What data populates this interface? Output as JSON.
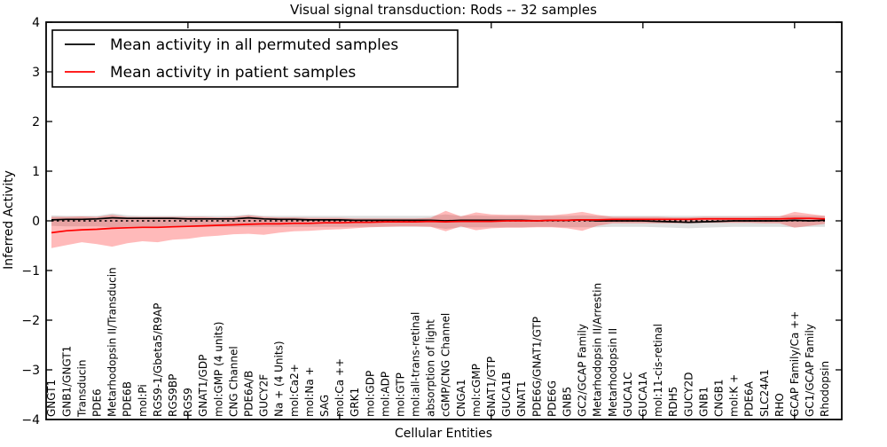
{
  "chart_data": {
    "type": "line",
    "title": "Visual signal transduction: Rods -- 32 samples",
    "xlabel": "Cellular Entities",
    "ylabel": "Inferred Activity",
    "ylim": [
      -4,
      4
    ],
    "yticks": [
      4,
      3,
      2,
      1,
      0,
      -1,
      -2,
      -3,
      -4
    ],
    "ytick_labels": [
      "4",
      "3",
      "2",
      "1",
      "0",
      "−1",
      "−2",
      "−3",
      "−4"
    ],
    "xtick_positions": [
      10,
      20,
      30,
      40,
      50
    ],
    "grid": false,
    "legend_position": "upper left",
    "categories": [
      "GNGT1",
      "GNB1/GNGT1",
      "Transducin",
      "PDE6",
      "Metarhodopsin II/Transducin",
      "PDE6B",
      "mol:Pi",
      "RGS9-1/Gbeta5/R9AP",
      "RGS9BP",
      "RGS9",
      "GNAT1/GDP",
      "mol:GMP (4 units)",
      "CNG Channel",
      "PDE6A/B",
      "GUCY2F",
      "Na + (4 Units)",
      "mol:Ca2+",
      "mol:Na +",
      "SAG",
      "mol:Ca ++",
      "GRK1",
      "mol:GDP",
      "mol:ADP",
      "mol:GTP",
      "mol:all-trans-retinal",
      "absorption of light",
      "cGMP/CNG Channel",
      "CNGA1",
      "mol:cGMP",
      "GNAT1/GTP",
      "GUCA1B",
      "GNAT1",
      "PDE6G/GNAT1/GTP",
      "PDE6G",
      "GNB5",
      "GC2/GCAP Family",
      "Metarhodopsin II/Arrestin",
      "Metarhodopsin II",
      "GUCA1C",
      "GUCA1A",
      "mol:11-cis-retinal",
      "RDH5",
      "GUCY2D",
      "GNB1",
      "CNGB1",
      "mol:K +",
      "PDE6A",
      "SLC24A1",
      "RHO",
      "GCAP Family/Ca ++",
      "GC1/GCAP Family",
      "Rhodopsin"
    ],
    "series": [
      {
        "name": "Mean activity in all permuted samples",
        "color": "#000000",
        "band_opacity": 0.13,
        "values": [
          0.02,
          0.03,
          0.03,
          0.04,
          0.06,
          0.05,
          0.05,
          0.05,
          0.05,
          0.04,
          0.04,
          0.04,
          0.04,
          0.06,
          0.04,
          0.03,
          0.03,
          0.02,
          0.02,
          0.02,
          0.01,
          0.01,
          0.01,
          0.01,
          0.01,
          0.01,
          0.0,
          0.01,
          0.01,
          0.01,
          0.01,
          0.01,
          0.0,
          0.01,
          0.01,
          0.02,
          0.0,
          0.0,
          0.0,
          0.0,
          -0.01,
          -0.02,
          -0.03,
          -0.02,
          -0.01,
          0.0,
          0.0,
          0.0,
          0.0,
          0.01,
          0.0,
          0.01
        ],
        "band_upper": [
          0.11,
          0.1,
          0.1,
          0.1,
          0.15,
          0.11,
          0.1,
          0.1,
          0.1,
          0.1,
          0.1,
          0.1,
          0.1,
          0.13,
          0.1,
          0.1,
          0.1,
          0.1,
          0.1,
          0.1,
          0.1,
          0.1,
          0.1,
          0.1,
          0.1,
          0.1,
          0.13,
          0.1,
          0.11,
          0.1,
          0.1,
          0.1,
          0.1,
          0.1,
          0.1,
          0.11,
          0.1,
          0.1,
          0.1,
          0.1,
          0.1,
          0.1,
          0.1,
          0.1,
          0.1,
          0.1,
          0.1,
          0.1,
          0.1,
          0.11,
          0.1,
          0.1
        ],
        "band_lower": [
          -0.1,
          -0.11,
          -0.11,
          -0.11,
          -0.13,
          -0.12,
          -0.12,
          -0.12,
          -0.12,
          -0.12,
          -0.12,
          -0.12,
          -0.12,
          -0.12,
          -0.12,
          -0.12,
          -0.12,
          -0.12,
          -0.12,
          -0.12,
          -0.12,
          -0.12,
          -0.12,
          -0.12,
          -0.12,
          -0.12,
          -0.16,
          -0.13,
          -0.13,
          -0.13,
          -0.13,
          -0.13,
          -0.12,
          -0.12,
          -0.13,
          -0.13,
          -0.13,
          -0.12,
          -0.12,
          -0.12,
          -0.13,
          -0.14,
          -0.15,
          -0.14,
          -0.13,
          -0.12,
          -0.12,
          -0.12,
          -0.12,
          -0.13,
          -0.12,
          -0.12
        ]
      },
      {
        "name": "Mean activity in patient samples",
        "color": "#ff0000",
        "band_opacity": 0.27,
        "values": [
          -0.24,
          -0.2,
          -0.18,
          -0.17,
          -0.15,
          -0.14,
          -0.13,
          -0.13,
          -0.12,
          -0.11,
          -0.1,
          -0.09,
          -0.08,
          -0.07,
          -0.06,
          -0.06,
          -0.05,
          -0.05,
          -0.04,
          -0.04,
          -0.03,
          -0.03,
          -0.02,
          -0.02,
          -0.02,
          -0.01,
          -0.02,
          -0.01,
          -0.01,
          -0.01,
          0.0,
          0.0,
          0.0,
          0.01,
          0.01,
          0.02,
          0.02,
          0.03,
          0.03,
          0.03,
          0.03,
          0.03,
          0.03,
          0.04,
          0.04,
          0.04,
          0.04,
          0.04,
          0.04,
          0.05,
          0.05,
          0.04
        ],
        "band_upper": [
          0.08,
          0.08,
          0.09,
          0.08,
          0.12,
          0.08,
          0.08,
          0.08,
          0.08,
          0.08,
          0.08,
          0.07,
          0.08,
          0.11,
          0.08,
          0.07,
          0.07,
          0.06,
          0.06,
          0.06,
          0.05,
          0.05,
          0.05,
          0.05,
          0.05,
          0.06,
          0.2,
          0.09,
          0.17,
          0.13,
          0.12,
          0.12,
          0.11,
          0.11,
          0.14,
          0.18,
          0.12,
          0.08,
          0.08,
          0.08,
          0.08,
          0.07,
          0.07,
          0.08,
          0.08,
          0.08,
          0.08,
          0.09,
          0.09,
          0.18,
          0.14,
          0.1
        ],
        "band_lower": [
          -0.55,
          -0.49,
          -0.43,
          -0.47,
          -0.52,
          -0.45,
          -0.41,
          -0.43,
          -0.38,
          -0.36,
          -0.32,
          -0.3,
          -0.27,
          -0.26,
          -0.28,
          -0.24,
          -0.21,
          -0.2,
          -0.18,
          -0.17,
          -0.15,
          -0.13,
          -0.12,
          -0.11,
          -0.11,
          -0.12,
          -0.21,
          -0.11,
          -0.19,
          -0.15,
          -0.14,
          -0.14,
          -0.13,
          -0.13,
          -0.15,
          -0.2,
          -0.1,
          -0.05,
          -0.05,
          -0.05,
          -0.05,
          -0.05,
          -0.05,
          -0.04,
          -0.04,
          -0.04,
          -0.04,
          -0.05,
          -0.05,
          -0.14,
          -0.1,
          -0.06
        ]
      }
    ],
    "zero_line": {
      "value": 0,
      "style": "dashed",
      "color": "#000000"
    }
  },
  "legend": {
    "items": [
      {
        "label": "Mean activity in all permuted samples",
        "color": "#000000"
      },
      {
        "label": "Mean activity in patient samples",
        "color": "#ff0000"
      }
    ]
  }
}
